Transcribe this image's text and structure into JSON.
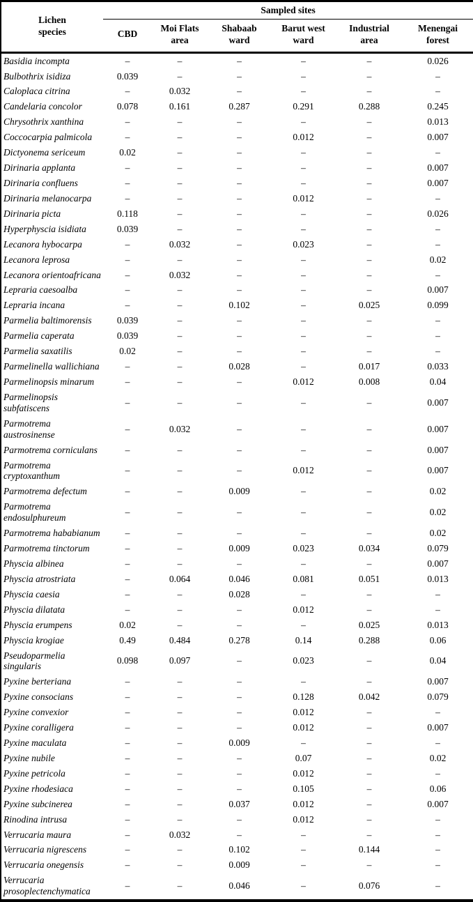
{
  "table": {
    "species_header": "Lichen\nspecies",
    "group_header": "Sampled sites",
    "site_columns": [
      "CBD",
      "Moi Flats\narea",
      "Shabaab\nward",
      "Barut west\nward",
      "Industrial\narea",
      "Menengai\nforest"
    ],
    "missing_symbol": "–",
    "rows": [
      {
        "species": "Basidia incompta",
        "values": [
          "–",
          "–",
          "–",
          "–",
          "–",
          "0.026"
        ]
      },
      {
        "species": "Bulbothrix isidiza",
        "values": [
          "0.039",
          "–",
          "–",
          "–",
          "–",
          "–"
        ]
      },
      {
        "species": "Caloplaca citrina",
        "values": [
          "–",
          "0.032",
          "–",
          "–",
          "–",
          "–"
        ]
      },
      {
        "species": "Candelaria concolor",
        "values": [
          "0.078",
          "0.161",
          "0.287",
          "0.291",
          "0.288",
          "0.245"
        ]
      },
      {
        "species": "Chrysothrix xanthina",
        "values": [
          "–",
          "–",
          "–",
          "–",
          "–",
          "0.013"
        ]
      },
      {
        "species": "Coccocarpia palmicola",
        "values": [
          "–",
          "–",
          "–",
          "0.012",
          "–",
          "0.007"
        ]
      },
      {
        "species": "Dictyonema sericeum",
        "values": [
          "0.02",
          "–",
          "–",
          "–",
          "–",
          "–"
        ]
      },
      {
        "species": "Dirinaria applanta",
        "values": [
          "–",
          "–",
          "–",
          "–",
          "–",
          "0.007"
        ]
      },
      {
        "species": "Dirinaria confluens",
        "values": [
          "–",
          "–",
          "–",
          "–",
          "–",
          "0.007"
        ]
      },
      {
        "species": "Dirinaria melanocarpa",
        "values": [
          "–",
          "–",
          "–",
          "0.012",
          "–",
          "–"
        ]
      },
      {
        "species": "Dirinaria picta",
        "values": [
          "0.118",
          "–",
          "–",
          "–",
          "–",
          "0.026"
        ]
      },
      {
        "species": "Hyperphyscia isidiata",
        "values": [
          "0.039",
          "–",
          "–",
          "–",
          "–",
          "–"
        ]
      },
      {
        "species": "Lecanora hybocarpa",
        "values": [
          "–",
          "0.032",
          "–",
          "0.023",
          "–",
          "–"
        ]
      },
      {
        "species": "Lecanora leprosa",
        "values": [
          "–",
          "–",
          "–",
          "–",
          "–",
          "0.02"
        ]
      },
      {
        "species": "Lecanora orientoafricana",
        "values": [
          "–",
          "0.032",
          "–",
          "–",
          "–",
          "–"
        ]
      },
      {
        "species": "Lepraria caesoalba",
        "values": [
          "–",
          "–",
          "–",
          "–",
          "–",
          "0.007"
        ]
      },
      {
        "species": "Lepraria incana",
        "values": [
          "–",
          "–",
          "0.102",
          "–",
          "0.025",
          "0.099"
        ]
      },
      {
        "species": "Parmelia baltimorensis",
        "values": [
          "0.039",
          "–",
          "–",
          "–",
          "–",
          "–"
        ]
      },
      {
        "species": "Parmelia caperata",
        "values": [
          "0.039",
          "–",
          "–",
          "–",
          "–",
          "–"
        ]
      },
      {
        "species": "Parmelia saxatilis",
        "values": [
          "0.02",
          "–",
          "–",
          "–",
          "–",
          "–"
        ]
      },
      {
        "species": "Parmelinella wallichiana",
        "values": [
          "–",
          "–",
          "0.028",
          "–",
          "0.017",
          "0.033"
        ]
      },
      {
        "species": "Parmelinopsis minarum",
        "values": [
          "–",
          "–",
          "–",
          "0.012",
          "0.008",
          "0.04"
        ]
      },
      {
        "species": "Parmelinopsis subfatiscens",
        "values": [
          "–",
          "–",
          "–",
          "–",
          "–",
          "0.007"
        ]
      },
      {
        "species": "Parmotrema austrosinense",
        "values": [
          "–",
          "0.032",
          "–",
          "–",
          "–",
          "0.007"
        ]
      },
      {
        "species": "Parmotrema corniculans",
        "values": [
          "–",
          "–",
          "–",
          "–",
          "–",
          "0.007"
        ]
      },
      {
        "species": "Parmotrema cryptoxanthum",
        "values": [
          "–",
          "–",
          "–",
          "0.012",
          "–",
          "0.007"
        ]
      },
      {
        "species": "Parmotrema defectum",
        "values": [
          "–",
          "–",
          "0.009",
          "–",
          "–",
          "0.02"
        ]
      },
      {
        "species": "Parmotrema endosulphureum",
        "values": [
          "–",
          "–",
          "–",
          "–",
          "–",
          "0.02"
        ]
      },
      {
        "species": "Parmotrema hababianum",
        "values": [
          "–",
          "–",
          "–",
          "–",
          "–",
          "0.02"
        ]
      },
      {
        "species": "Parmotrema tinctorum",
        "values": [
          "–",
          "–",
          "0.009",
          "0.023",
          "0.034",
          "0.079"
        ]
      },
      {
        "species": "Physcia albinea",
        "values": [
          "–",
          "–",
          "–",
          "–",
          "–",
          "0.007"
        ]
      },
      {
        "species": "Physcia atrostriata",
        "values": [
          "–",
          "0.064",
          "0.046",
          "0.081",
          "0.051",
          "0.013"
        ]
      },
      {
        "species": "Physcia caesia",
        "values": [
          "–",
          "–",
          "0.028",
          "–",
          "–",
          "–"
        ]
      },
      {
        "species": "Physcia dilatata",
        "values": [
          "–",
          "–",
          "–",
          "0.012",
          "–",
          "–"
        ]
      },
      {
        "species": "Physcia erumpens",
        "values": [
          "0.02",
          "–",
          "–",
          "–",
          "0.025",
          "0.013"
        ]
      },
      {
        "species": "Physcia krogiae",
        "values": [
          "0.49",
          "0.484",
          "0.278",
          "0.14",
          "0.288",
          "0.06"
        ]
      },
      {
        "species": "Pseudoparmelia singularis",
        "values": [
          "0.098",
          "0.097",
          "–",
          "0.023",
          "–",
          "0.04"
        ]
      },
      {
        "species": "Pyxine berteriana",
        "values": [
          "–",
          "–",
          "–",
          "–",
          "–",
          "0.007"
        ]
      },
      {
        "species": "Pyxine consocians",
        "values": [
          "–",
          "–",
          "–",
          "0.128",
          "0.042",
          "0.079"
        ]
      },
      {
        "species": "Pyxine convexior",
        "values": [
          "–",
          "–",
          "–",
          "0.012",
          "–",
          "–"
        ]
      },
      {
        "species": "Pyxine coralligera",
        "values": [
          "–",
          "–",
          "–",
          "0.012",
          "–",
          "0.007"
        ]
      },
      {
        "species": "Pyxine maculata",
        "values": [
          "–",
          "–",
          "0.009",
          "–",
          "–",
          "–"
        ]
      },
      {
        "species": "Pyxine nubile",
        "values": [
          "–",
          "–",
          "–",
          "0.07",
          "–",
          "0.02"
        ]
      },
      {
        "species": "Pyxine petricola",
        "values": [
          "–",
          "–",
          "–",
          "0.012",
          "–",
          "–"
        ]
      },
      {
        "species": "Pyxine rhodesiaca",
        "values": [
          "–",
          "–",
          "–",
          "0.105",
          "–",
          "0.06"
        ]
      },
      {
        "species": "Pyxine subcinerea",
        "values": [
          "–",
          "–",
          "0.037",
          "0.012",
          "–",
          "0.007"
        ]
      },
      {
        "species": "Rinodina intrusa",
        "values": [
          "–",
          "–",
          "–",
          "0.012",
          "–",
          "–"
        ]
      },
      {
        "species": "Verrucaria maura",
        "values": [
          "–",
          "0.032",
          "–",
          "–",
          "–",
          "–"
        ]
      },
      {
        "species": "Verrucaria nigrescens",
        "values": [
          "–",
          "–",
          "0.102",
          "–",
          "0.144",
          "–"
        ]
      },
      {
        "species": "Verrucaria onegensis",
        "values": [
          "–",
          "–",
          "0.009",
          "–",
          "–",
          "–"
        ]
      },
      {
        "species": "Verrucaria prosoplectenchymatica",
        "values": [
          "–",
          "–",
          "0.046",
          "–",
          "0.076",
          "–"
        ]
      }
    ]
  }
}
